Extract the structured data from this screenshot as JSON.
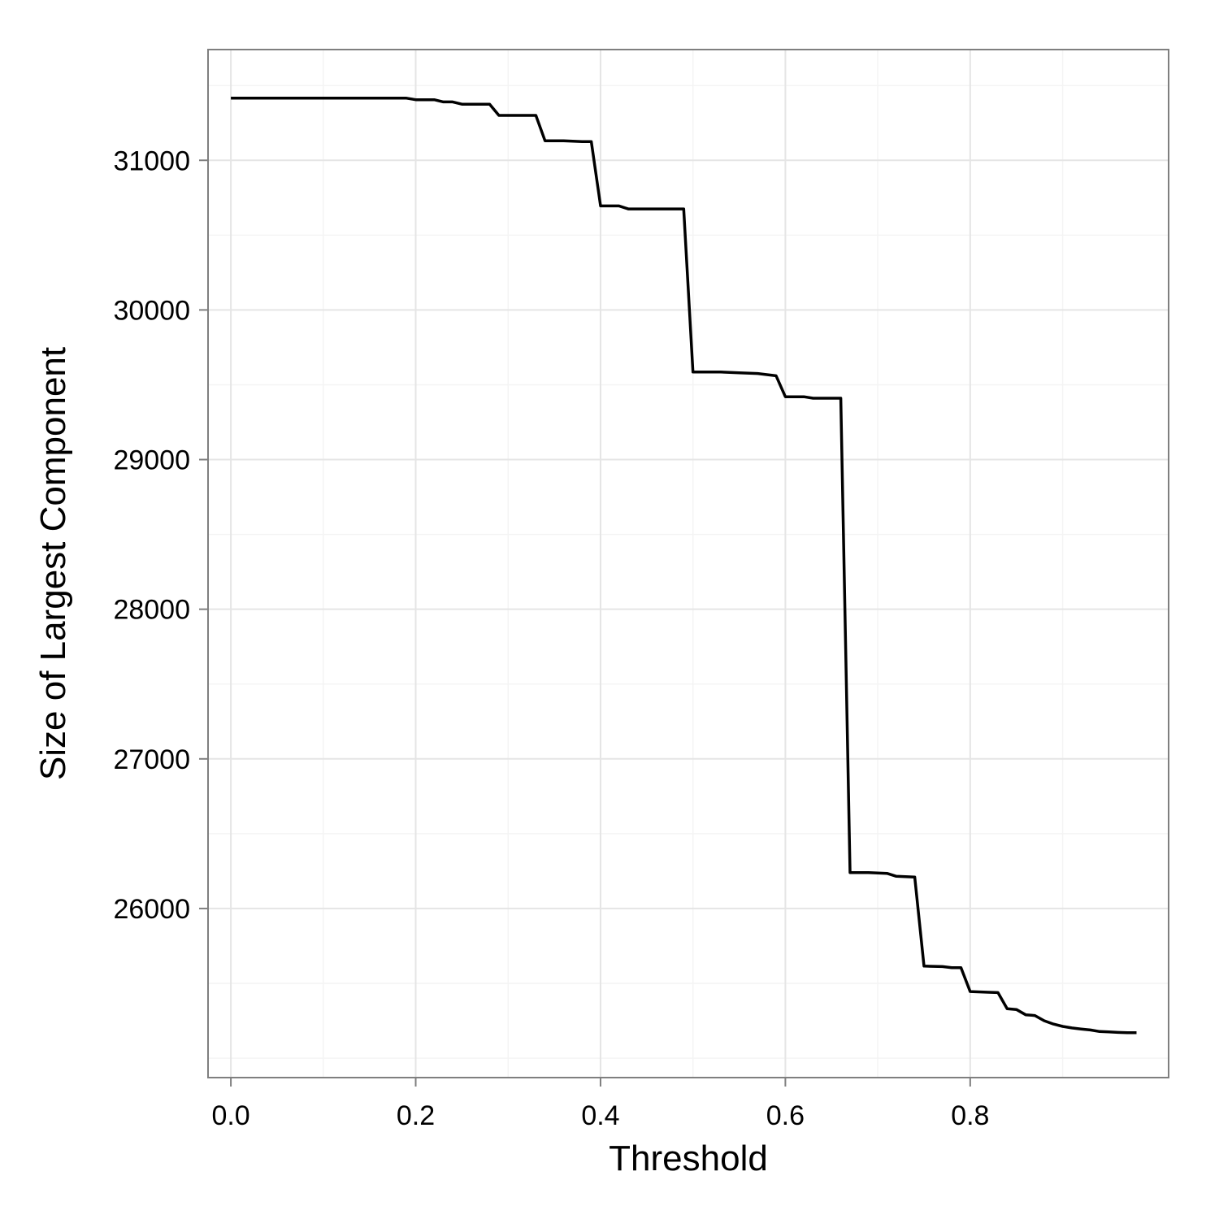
{
  "chart_data": {
    "type": "line",
    "title": "",
    "xlabel": "Threshold",
    "ylabel": "Size of Largest Component",
    "xlim": [
      -0.0247,
      1.0147
    ],
    "ylim": [
      24870,
      31740
    ],
    "x_ticks": [
      0.0,
      0.2,
      0.4,
      0.6,
      0.8
    ],
    "x_tick_labels": [
      "0.0",
      "0.2",
      "0.4",
      "0.6",
      "0.8"
    ],
    "y_ticks": [
      26000,
      27000,
      28000,
      29000,
      30000,
      31000
    ],
    "y_tick_labels": [
      "26000",
      "27000",
      "28000",
      "29000",
      "30000",
      "31000"
    ],
    "x_minor_ticks": [
      0.1,
      0.3,
      0.5,
      0.7,
      0.9
    ],
    "y_minor_ticks": [
      25000,
      25500,
      26500,
      27500,
      28500,
      29500,
      30500,
      31500
    ],
    "grid": true,
    "legend": "none",
    "colors": {
      "line": "#000000",
      "grid_major": "#e5e5e5",
      "grid_minor": "#f4f4f4",
      "panel_border": "#7f7f7f"
    },
    "series": [
      {
        "x": [
          0.0,
          0.19,
          0.2,
          0.22,
          0.23,
          0.24,
          0.25,
          0.28,
          0.29,
          0.33,
          0.34,
          0.36,
          0.38,
          0.39,
          0.4,
          0.42,
          0.43,
          0.49,
          0.5,
          0.53,
          0.55,
          0.57,
          0.59,
          0.6,
          0.62,
          0.63,
          0.66,
          0.67,
          0.69,
          0.71,
          0.72,
          0.74,
          0.75,
          0.77,
          0.78,
          0.79,
          0.8,
          0.82,
          0.83,
          0.84,
          0.85,
          0.86,
          0.87,
          0.88,
          0.89,
          0.9,
          0.91,
          0.92,
          0.93,
          0.94,
          0.95,
          0.96,
          0.97,
          0.98
        ],
        "y": [
          31415,
          31415,
          31405,
          31405,
          31390,
          31390,
          31375,
          31375,
          31300,
          31300,
          31130,
          31130,
          31125,
          31125,
          30695,
          30695,
          30675,
          30675,
          29585,
          29585,
          29580,
          29575,
          29560,
          29420,
          29420,
          29410,
          29410,
          26240,
          26240,
          26235,
          26215,
          26210,
          25615,
          25612,
          25605,
          25605,
          25445,
          25440,
          25438,
          25330,
          25325,
          25290,
          25285,
          25250,
          25228,
          25212,
          25202,
          25195,
          25188,
          25178,
          25175,
          25172,
          25170,
          25170
        ]
      }
    ]
  }
}
